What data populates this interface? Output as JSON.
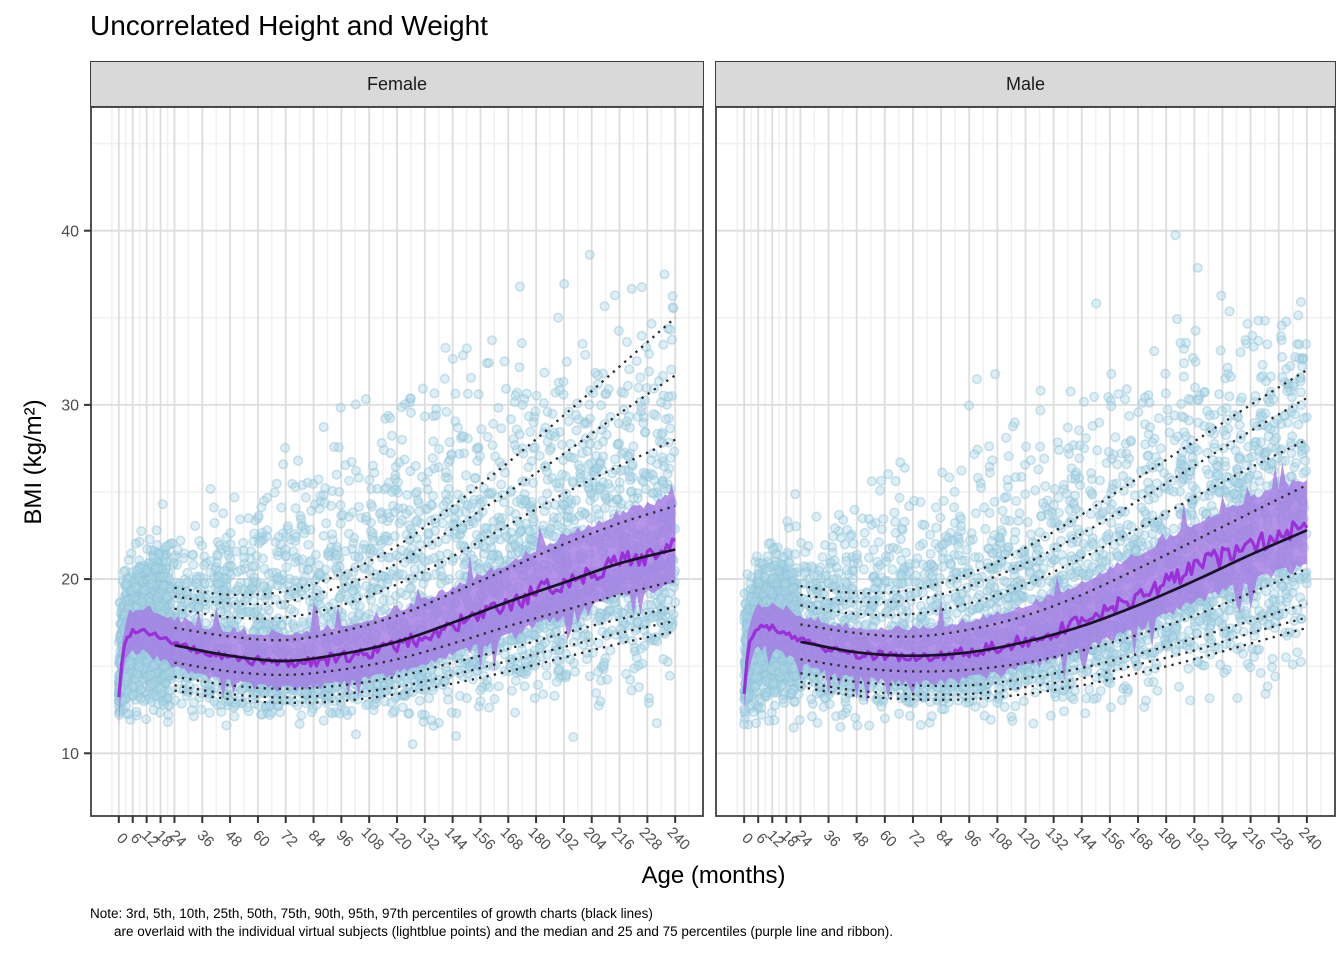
{
  "title": "Uncorrelated Height and Weight",
  "note": {
    "line1": "Note: 3rd, 5th, 10th, 25th, 50th, 75th, 90th, 95th, 97th percentiles of growth charts (black lines)",
    "line2": "are overlaid with the individual virtual subjects (lightblue points) and the median and 25 and 75 percentiles (purple line and ribbon)."
  },
  "chart_data": {
    "type": "scatter",
    "title": "Uncorrelated Height and Weight",
    "xlabel": "Age (months)",
    "ylabel": "BMI (kg/m²)",
    "legend": "none",
    "grid": true,
    "x_ticks": [
      0,
      6,
      12,
      18,
      24,
      36,
      48,
      60,
      72,
      84,
      96,
      108,
      120,
      132,
      144,
      156,
      168,
      180,
      192,
      204,
      216,
      228,
      240
    ],
    "y_ticks": [
      10,
      20,
      30,
      40
    ],
    "x_range": [
      -12,
      252
    ],
    "y_range": [
      6.4,
      47.1
    ],
    "percentile_labels": [
      "3rd",
      "5th",
      "10th",
      "25th",
      "50th",
      "75th",
      "90th",
      "95th",
      "97th"
    ],
    "growth_ages": [
      24,
      48,
      72,
      96,
      120,
      144,
      168,
      192,
      216,
      240
    ],
    "median_ages": [
      0,
      2,
      4,
      6,
      9,
      12,
      18,
      24,
      36,
      48,
      60,
      72,
      84,
      96,
      108,
      120,
      132,
      144,
      156,
      168,
      180,
      192,
      204,
      216,
      228,
      240
    ],
    "envelope_ages": [
      0,
      24,
      60,
      120,
      180,
      240
    ],
    "noise": {
      "median": 0.5,
      "ribbon": 0.42,
      "spike": 1.7
    },
    "facets": [
      {
        "label": "Female",
        "growth_percentiles": {
          "p3": [
            13.6,
            13.1,
            12.9,
            13.0,
            13.4,
            14.0,
            14.7,
            15.5,
            16.3,
            17.0
          ],
          "p5": [
            13.9,
            13.4,
            13.2,
            13.4,
            13.8,
            14.5,
            15.3,
            16.1,
            16.9,
            17.6
          ],
          "p10": [
            14.4,
            13.9,
            13.7,
            13.9,
            14.4,
            15.2,
            16.0,
            16.9,
            17.7,
            18.4
          ],
          "p25": [
            15.2,
            14.7,
            14.5,
            14.8,
            15.4,
            16.3,
            17.3,
            18.2,
            19.1,
            19.9
          ],
          "p50": [
            16.2,
            15.6,
            15.3,
            15.7,
            16.4,
            17.5,
            18.7,
            19.8,
            20.9,
            21.7
          ],
          "p75": [
            17.2,
            16.7,
            16.5,
            17.0,
            17.9,
            19.2,
            20.6,
            22.0,
            23.2,
            24.2
          ],
          "p90": [
            18.3,
            17.8,
            17.8,
            18.5,
            19.7,
            21.3,
            23.1,
            24.9,
            26.5,
            28.0
          ],
          "p95": [
            19.0,
            18.6,
            18.7,
            19.6,
            20.9,
            22.9,
            25.0,
            27.2,
            29.5,
            31.7
          ],
          "p97": [
            19.5,
            19.1,
            19.3,
            20.3,
            21.9,
            24.2,
            26.7,
            29.4,
            32.2,
            35.0
          ]
        },
        "subject_median": [
          13.3,
          15.9,
          16.7,
          17.0,
          17.1,
          17.0,
          16.7,
          16.3,
          15.8,
          15.5,
          15.3,
          15.2,
          15.3,
          15.5,
          15.8,
          16.2,
          16.7,
          17.3,
          17.9,
          18.5,
          19.2,
          19.8,
          20.4,
          21.0,
          21.4,
          21.8
        ],
        "ribbon_lower_offset": [
          1.0,
          1.2,
          1.3,
          1.4,
          1.7,
          2.0
        ],
        "ribbon_upper_offset": [
          1.0,
          1.3,
          1.5,
          1.9,
          2.4,
          2.8
        ],
        "scatter": {
          "count": 3600,
          "young_count": 1200,
          "lower_env": [
            10.8,
            10.6,
            10.2,
            10.0,
            9.6,
            9.3
          ],
          "upper_env": [
            21.5,
            27.0,
            32.0,
            38.0,
            43.0,
            46.0
          ]
        }
      },
      {
        "label": "Male",
        "growth_percentiles": {
          "p3": [
            13.8,
            13.3,
            13.1,
            13.1,
            13.4,
            13.9,
            14.6,
            15.4,
            16.3,
            17.2
          ],
          "p5": [
            14.1,
            13.6,
            13.4,
            13.4,
            13.8,
            14.3,
            15.1,
            15.9,
            16.9,
            17.8
          ],
          "p10": [
            14.6,
            14.1,
            13.9,
            13.9,
            14.3,
            14.9,
            15.7,
            16.6,
            17.6,
            18.6
          ],
          "p25": [
            15.4,
            14.9,
            14.7,
            14.8,
            15.2,
            15.9,
            16.8,
            17.9,
            19.2,
            20.6
          ],
          "p50": [
            16.4,
            15.8,
            15.6,
            15.8,
            16.4,
            17.3,
            18.5,
            19.9,
            21.4,
            22.8
          ],
          "p75": [
            17.4,
            16.9,
            16.7,
            17.1,
            17.9,
            19.1,
            20.6,
            22.2,
            23.8,
            25.4
          ],
          "p90": [
            18.5,
            18.0,
            18.0,
            18.6,
            19.7,
            21.2,
            22.9,
            24.7,
            26.4,
            28.0
          ],
          "p95": [
            19.1,
            18.7,
            18.8,
            19.6,
            20.9,
            22.6,
            24.5,
            26.5,
            28.5,
            30.4
          ],
          "p97": [
            19.6,
            19.2,
            19.4,
            20.3,
            21.8,
            23.7,
            25.8,
            27.9,
            30.0,
            32.0
          ]
        },
        "subject_median": [
          13.5,
          16.1,
          16.9,
          17.2,
          17.3,
          17.2,
          16.9,
          16.5,
          16.0,
          15.7,
          15.6,
          15.5,
          15.6,
          15.8,
          16.1,
          16.5,
          17.0,
          17.6,
          18.3,
          19.0,
          19.8,
          20.6,
          21.3,
          21.9,
          22.5,
          22.9
        ],
        "ribbon_lower_offset": [
          1.0,
          1.2,
          1.3,
          1.4,
          1.7,
          2.0
        ],
        "ribbon_upper_offset": [
          1.0,
          1.3,
          1.5,
          1.9,
          2.4,
          2.7
        ],
        "scatter": {
          "count": 3600,
          "young_count": 1200,
          "lower_env": [
            10.8,
            10.6,
            10.2,
            10.0,
            9.6,
            9.4
          ],
          "upper_env": [
            21.5,
            26.0,
            31.0,
            36.5,
            41.5,
            44.5
          ]
        }
      }
    ],
    "colors": {
      "point_fill": "#ADD8E6",
      "point_stroke": "#90C4DA",
      "ribbon": "#A47BE3",
      "median_line": "#9B2FD9",
      "growth_median_line": "#1A1328",
      "dotted_line": "#2B2B2B",
      "grid_major": "#DDDDDD",
      "grid_minor": "#F0F0F0",
      "axis_text": "#4D4D4D",
      "strip_bg": "#D9D9D9",
      "panel_border": "#404040"
    }
  }
}
